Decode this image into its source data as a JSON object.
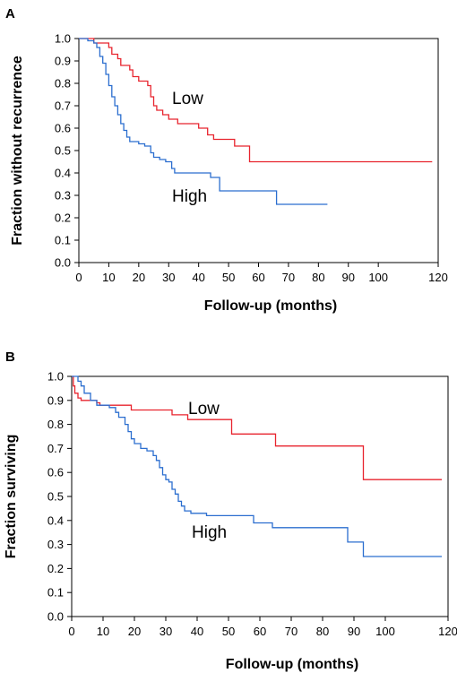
{
  "chart_data": [
    {
      "panel": "A",
      "type": "line",
      "title": "",
      "xlabel": "Follow-up (months)",
      "ylabel": "Fraction without recurrence",
      "xlim": [
        0,
        120
      ],
      "ylim": [
        0,
        1.0
      ],
      "x_ticks": [
        0,
        10,
        20,
        30,
        40,
        50,
        60,
        70,
        80,
        90,
        100,
        120
      ],
      "y_ticks": [
        0.0,
        0.1,
        0.2,
        0.3,
        0.4,
        0.5,
        0.6,
        0.7,
        0.8,
        0.9,
        1.0
      ],
      "grid": false,
      "series": [
        {
          "name": "Low",
          "color": "#e8242e",
          "step_points": [
            [
              0,
              1.0
            ],
            [
              5,
              0.98
            ],
            [
              10,
              0.96
            ],
            [
              11,
              0.93
            ],
            [
              13,
              0.91
            ],
            [
              14,
              0.88
            ],
            [
              17,
              0.86
            ],
            [
              18,
              0.83
            ],
            [
              20,
              0.81
            ],
            [
              23,
              0.79
            ],
            [
              24,
              0.74
            ],
            [
              25,
              0.7
            ],
            [
              26,
              0.68
            ],
            [
              28,
              0.66
            ],
            [
              30,
              0.64
            ],
            [
              33,
              0.62
            ],
            [
              40,
              0.6
            ],
            [
              43,
              0.57
            ],
            [
              45,
              0.55
            ],
            [
              52,
              0.52
            ],
            [
              57,
              0.45
            ],
            [
              118,
              0.45
            ]
          ]
        },
        {
          "name": "High",
          "color": "#2b6ecf",
          "step_points": [
            [
              0,
              1.0
            ],
            [
              3,
              0.99
            ],
            [
              5,
              0.98
            ],
            [
              6,
              0.96
            ],
            [
              7,
              0.92
            ],
            [
              8,
              0.89
            ],
            [
              9,
              0.84
            ],
            [
              10,
              0.79
            ],
            [
              11,
              0.74
            ],
            [
              12,
              0.7
            ],
            [
              13,
              0.66
            ],
            [
              14,
              0.62
            ],
            [
              15,
              0.59
            ],
            [
              16,
              0.56
            ],
            [
              17,
              0.54
            ],
            [
              20,
              0.53
            ],
            [
              22,
              0.52
            ],
            [
              24,
              0.49
            ],
            [
              25,
              0.47
            ],
            [
              27,
              0.46
            ],
            [
              29,
              0.45
            ],
            [
              31,
              0.42
            ],
            [
              32,
              0.4
            ],
            [
              38,
              0.4
            ],
            [
              44,
              0.38
            ],
            [
              47,
              0.32
            ],
            [
              65,
              0.32
            ],
            [
              66,
              0.26
            ],
            [
              83,
              0.26
            ]
          ]
        }
      ]
    },
    {
      "panel": "B",
      "type": "line",
      "title": "",
      "xlabel": "Follow-up (months)",
      "ylabel": "Fraction surviving",
      "xlim": [
        0,
        120
      ],
      "ylim": [
        0,
        1.0
      ],
      "x_ticks": [
        0,
        10,
        20,
        30,
        40,
        50,
        60,
        70,
        80,
        90,
        100,
        120
      ],
      "y_ticks": [
        0.0,
        0.1,
        0.2,
        0.3,
        0.4,
        0.5,
        0.6,
        0.7,
        0.8,
        0.9,
        1.0
      ],
      "grid": false,
      "series": [
        {
          "name": "Low",
          "color": "#e8242e",
          "step_points": [
            [
              0,
              1.0
            ],
            [
              0.5,
              0.96
            ],
            [
              1,
              0.93
            ],
            [
              2,
              0.91
            ],
            [
              3,
              0.9
            ],
            [
              8,
              0.89
            ],
            [
              9,
              0.88
            ],
            [
              19,
              0.86
            ],
            [
              32,
              0.84
            ],
            [
              37,
              0.82
            ],
            [
              51,
              0.76
            ],
            [
              65,
              0.71
            ],
            [
              93,
              0.57
            ],
            [
              118,
              0.57
            ]
          ]
        },
        {
          "name": "High",
          "color": "#2b6ecf",
          "step_points": [
            [
              0,
              1.0
            ],
            [
              2,
              0.98
            ],
            [
              3,
              0.96
            ],
            [
              4,
              0.93
            ],
            [
              6,
              0.9
            ],
            [
              8,
              0.88
            ],
            [
              12,
              0.87
            ],
            [
              14,
              0.85
            ],
            [
              15,
              0.83
            ],
            [
              17,
              0.8
            ],
            [
              18,
              0.77
            ],
            [
              19,
              0.74
            ],
            [
              20,
              0.72
            ],
            [
              22,
              0.7
            ],
            [
              24,
              0.69
            ],
            [
              26,
              0.67
            ],
            [
              27,
              0.65
            ],
            [
              28,
              0.62
            ],
            [
              29,
              0.59
            ],
            [
              30,
              0.57
            ],
            [
              31,
              0.56
            ],
            [
              32,
              0.53
            ],
            [
              33,
              0.51
            ],
            [
              34,
              0.48
            ],
            [
              35,
              0.46
            ],
            [
              36,
              0.44
            ],
            [
              38,
              0.43
            ],
            [
              43,
              0.42
            ],
            [
              58,
              0.39
            ],
            [
              64,
              0.37
            ],
            [
              88,
              0.31
            ],
            [
              93,
              0.25
            ],
            [
              118,
              0.25
            ]
          ]
        }
      ]
    }
  ]
}
